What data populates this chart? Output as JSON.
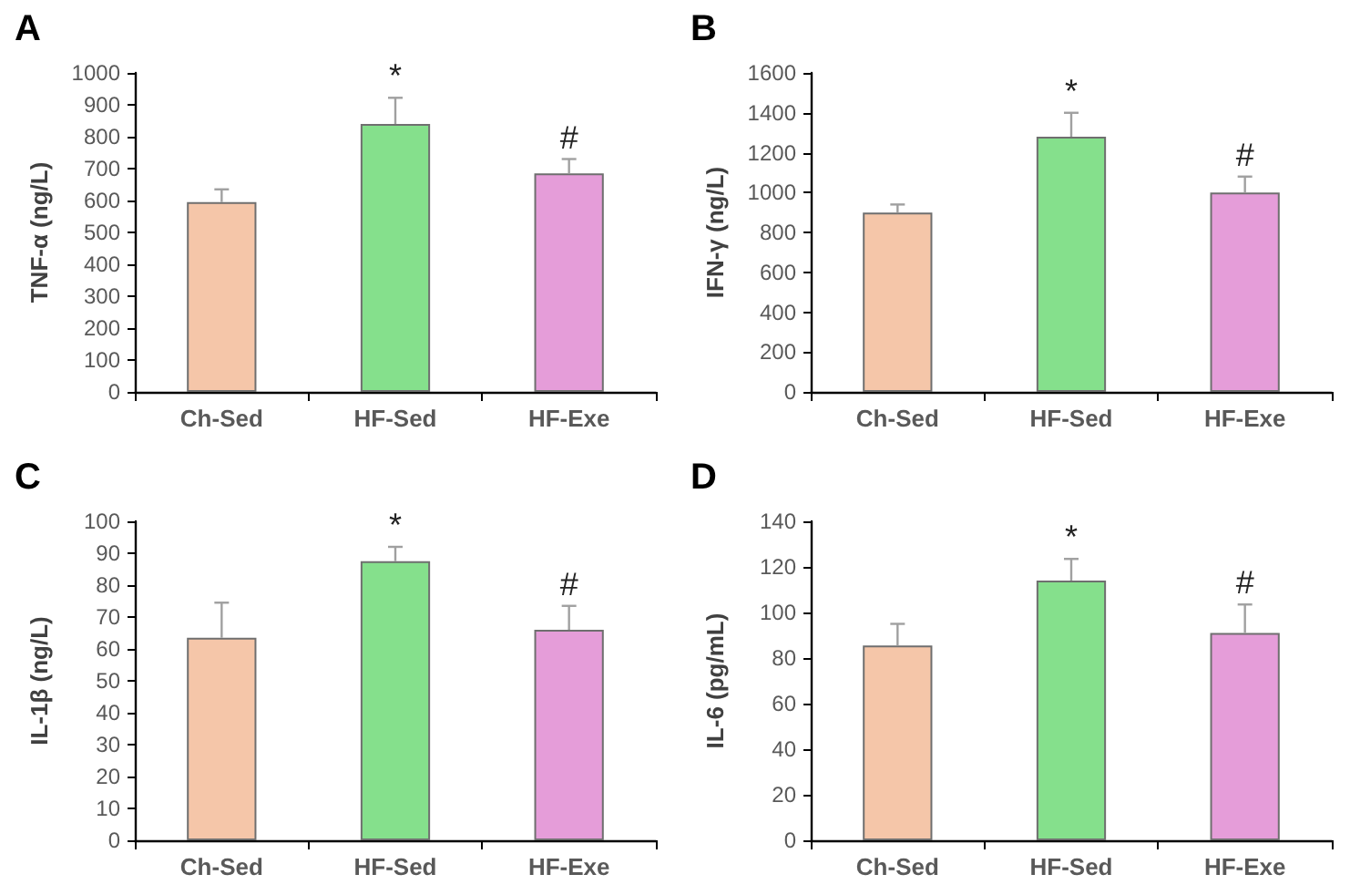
{
  "chart_data": [
    {
      "type": "bar",
      "title": "A",
      "ylabel": "TNF-α (ng/L)",
      "categories": [
        "Ch-Sed",
        "HF-Sed",
        "HF-Exe"
      ],
      "values": [
        595,
        840,
        685
      ],
      "colors": [
        "#f5c6a9",
        "#85e08c",
        "#e59dd9"
      ],
      "errors": [
        [
          595,
          635
        ],
        [
          840,
          922
        ],
        [
          685,
          730
        ]
      ],
      "ylim": [
        0,
        1000
      ],
      "yticks": [
        0,
        100,
        200,
        300,
        400,
        500,
        600,
        700,
        800,
        900,
        1000
      ],
      "annotations": [
        {
          "text": "*",
          "x": "HF-Sed",
          "y": 922
        },
        {
          "text": "#",
          "x": "HF-Exe",
          "y": 730
        }
      ]
    },
    {
      "type": "bar",
      "title": "B",
      "ylabel": "IFN-γ (ng/L)",
      "categories": [
        "Ch-Sed",
        "HF-Sed",
        "HF-Exe"
      ],
      "values": [
        900,
        1280,
        1000
      ],
      "colors": [
        "#f5c6a9",
        "#85e08c",
        "#e59dd9"
      ],
      "errors": [
        [
          900,
          940
        ],
        [
          1280,
          1400
        ],
        [
          1000,
          1080
        ]
      ],
      "ylim": [
        0,
        1600
      ],
      "yticks": [
        0,
        200,
        400,
        600,
        800,
        1000,
        1200,
        1400,
        1600
      ],
      "annotations": [
        {
          "text": "*",
          "x": "HF-Sed",
          "y": 1400
        },
        {
          "text": "#",
          "x": "HF-Exe",
          "y": 1080
        }
      ]
    },
    {
      "type": "bar",
      "title": "C",
      "ylabel": "IL-1β (ng/L)",
      "categories": [
        "Ch-Sed",
        "HF-Sed",
        "HF-Exe"
      ],
      "values": [
        63.5,
        87.5,
        66
      ],
      "colors": [
        "#f5c6a9",
        "#85e08c",
        "#e59dd9"
      ],
      "errors": [
        [
          63.5,
          74.5
        ],
        [
          87.5,
          92
        ],
        [
          66,
          73.5
        ]
      ],
      "ylim": [
        0,
        100
      ],
      "yticks": [
        0,
        10,
        20,
        30,
        40,
        50,
        60,
        70,
        80,
        90,
        100
      ],
      "annotations": [
        {
          "text": "*",
          "x": "HF-Sed",
          "y": 92
        },
        {
          "text": "#",
          "x": "HF-Exe",
          "y": 73.5
        }
      ]
    },
    {
      "type": "bar",
      "title": "D",
      "ylabel": "IL-6 (pg/mL)",
      "categories": [
        "Ch-Sed",
        "HF-Sed",
        "HF-Exe"
      ],
      "values": [
        85.5,
        114,
        91
      ],
      "colors": [
        "#f5c6a9",
        "#85e08c",
        "#e59dd9"
      ],
      "errors": [
        [
          85.5,
          95
        ],
        [
          114,
          123.5
        ],
        [
          91,
          103.5
        ]
      ],
      "ylim": [
        0,
        140
      ],
      "yticks": [
        0,
        20,
        40,
        60,
        80,
        100,
        120,
        140
      ],
      "annotations": [
        {
          "text": "*",
          "x": "HF-Sed",
          "y": 123.5
        },
        {
          "text": "#",
          "x": "HF-Exe",
          "y": 103.5
        }
      ]
    }
  ]
}
